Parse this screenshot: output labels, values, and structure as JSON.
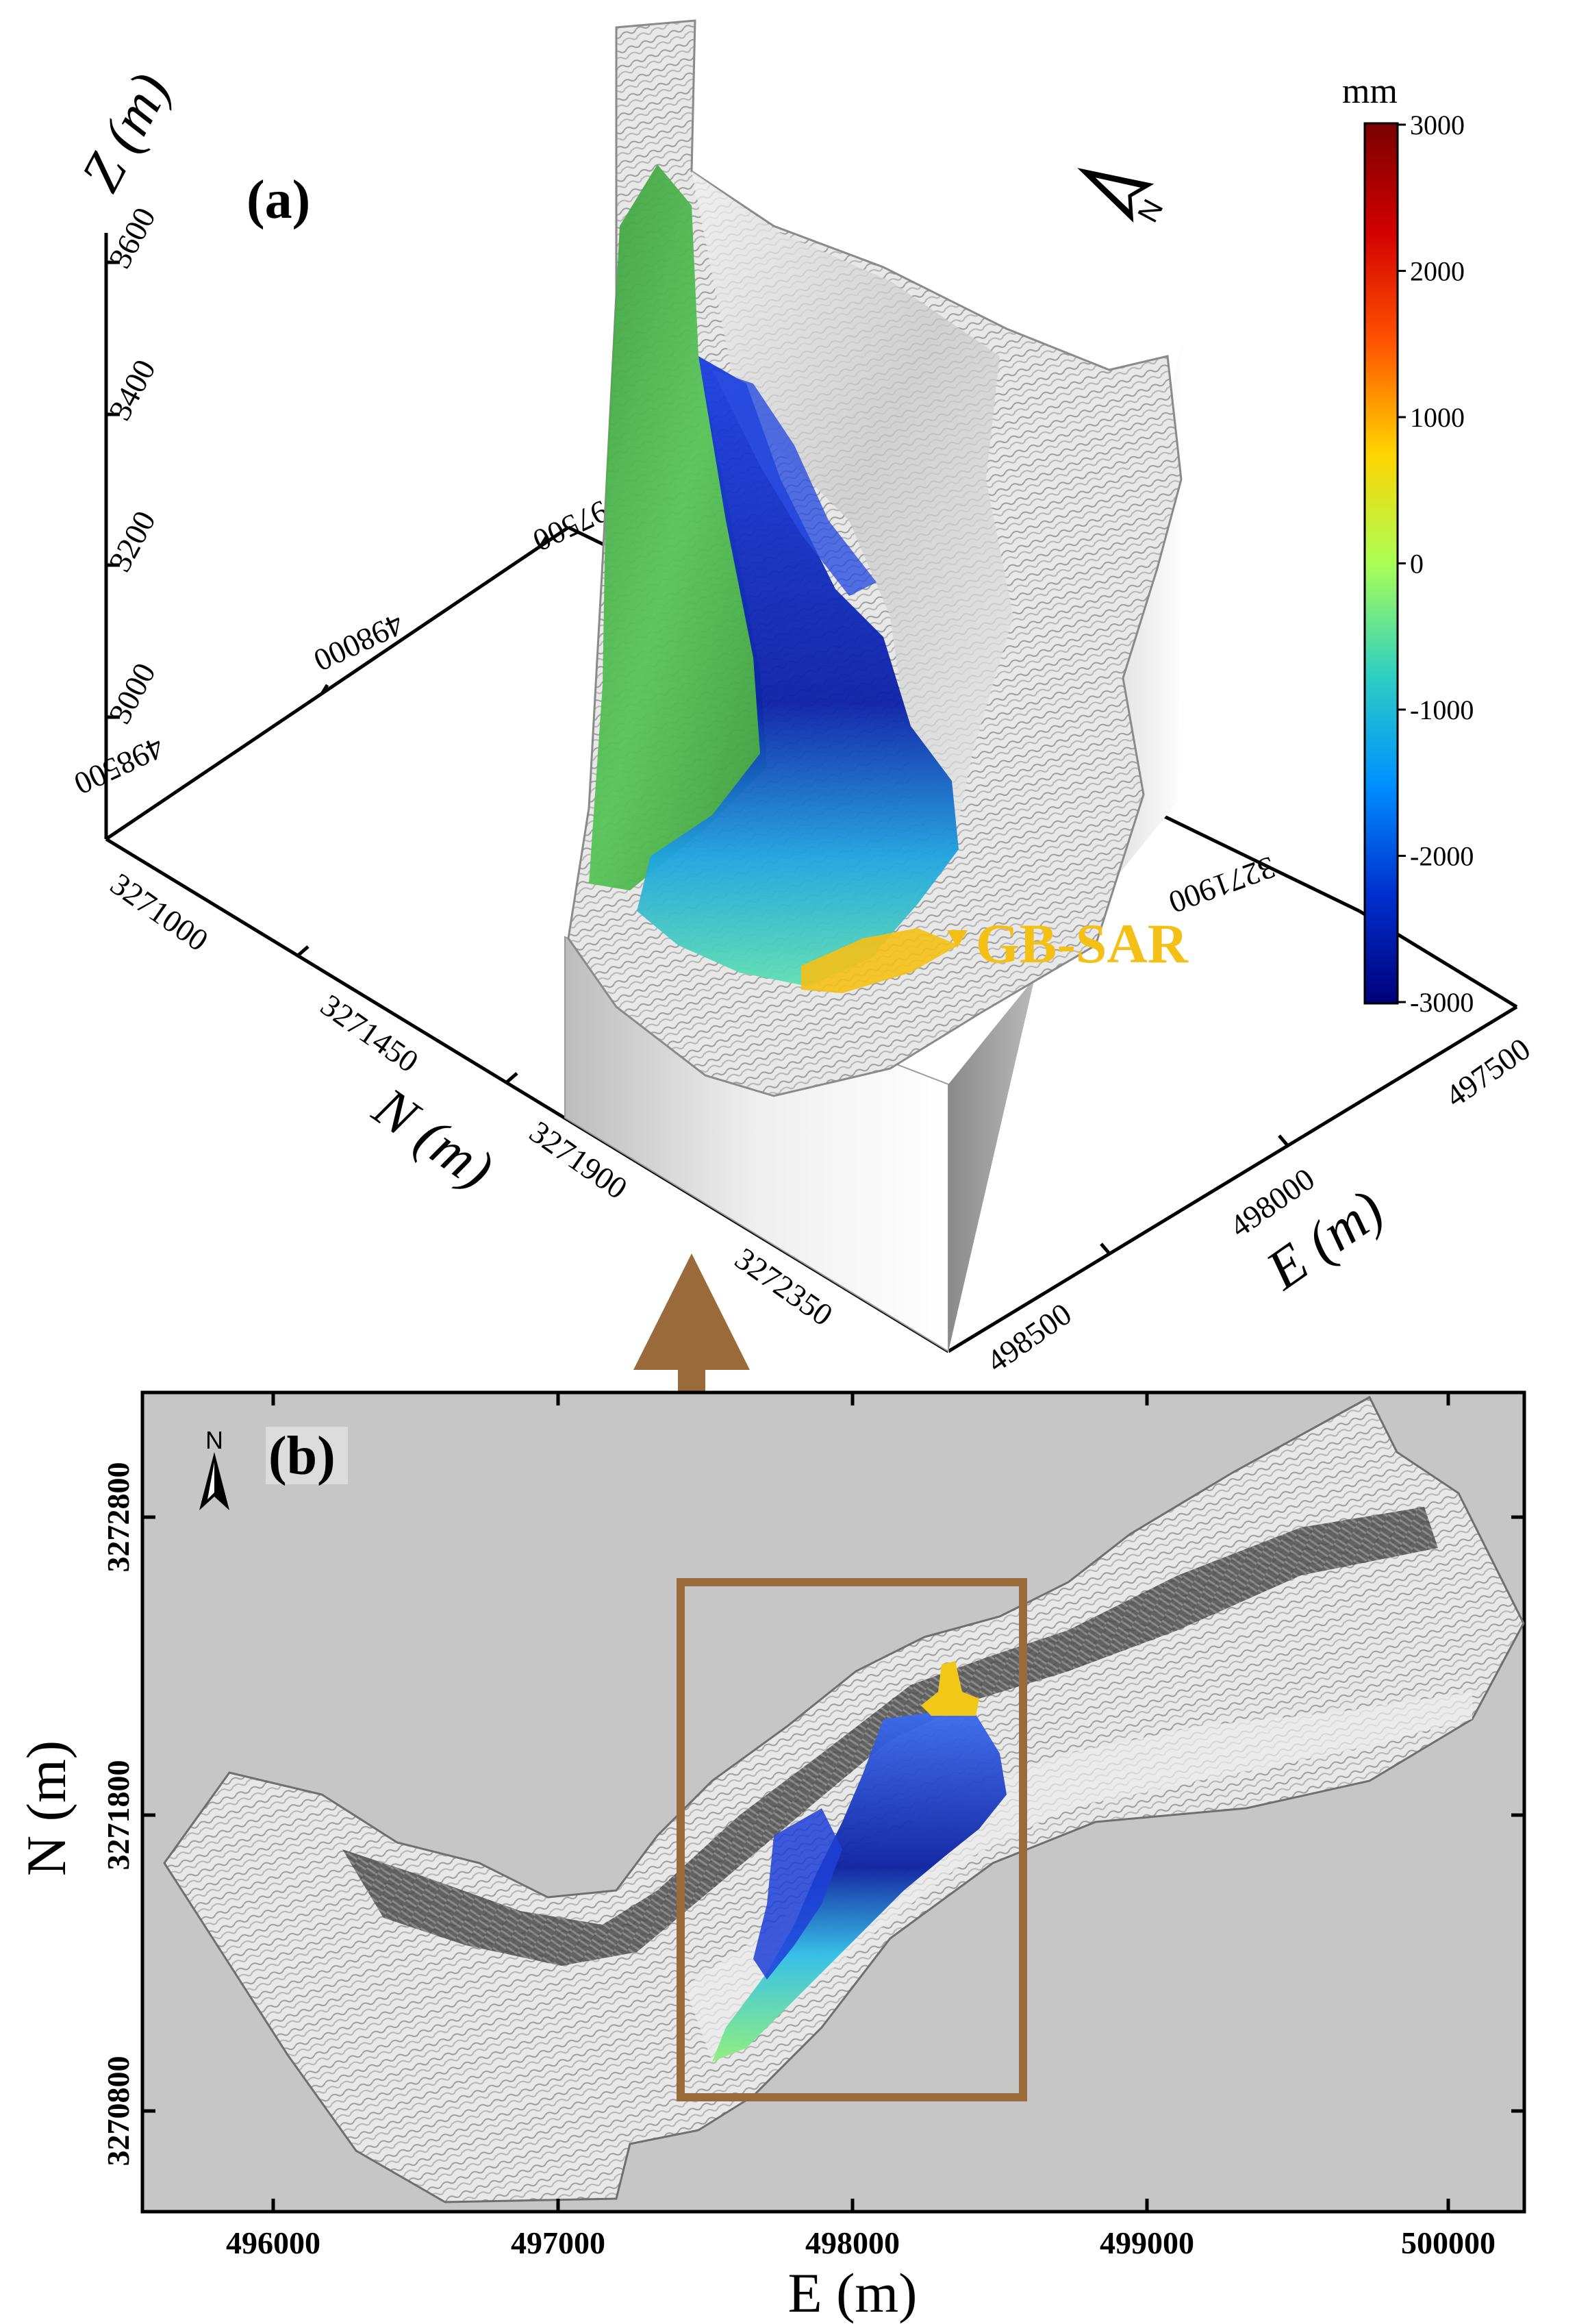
{
  "panel_a": {
    "label": "(a)",
    "z_axis": {
      "label": "Z (m)",
      "ticks": [
        "3000",
        "3200",
        "3400",
        "3600"
      ]
    },
    "n_axis": {
      "label": "N (m)",
      "ticks": [
        "3271000",
        "3271450",
        "3271900",
        "3272350"
      ]
    },
    "e_axis": {
      "label": "E (m)",
      "ticks": [
        "497500",
        "498000",
        "498500"
      ]
    },
    "back_e_ticks": [
      "498500",
      "498000",
      "497500"
    ],
    "back_n_tick": "3271900",
    "north_arrow": {
      "icon": "north-arrow-icon",
      "letter": "N"
    },
    "gbsar_label": "GB-SAR",
    "gbsar_color": "#f5c016",
    "colorbar": {
      "unit": "mm",
      "ticks": [
        "3000",
        "2000",
        "1000",
        "0",
        "-1000",
        "-2000",
        "-3000"
      ],
      "colors": [
        "#7a0000",
        "#d40000",
        "#ff5500",
        "#ffd400",
        "#aaff55",
        "#30d0c0",
        "#0090ff",
        "#0030d0",
        "#00007a"
      ]
    }
  },
  "panel_b": {
    "label": "(b)",
    "north_arrow": {
      "icon": "north-arrow-icon",
      "letter": "N"
    },
    "x_axis": {
      "label": "E (m)",
      "ticks": [
        "496000",
        "497000",
        "498000",
        "499000",
        "500000"
      ]
    },
    "y_axis": {
      "label": "N (m)",
      "ticks": [
        "3270800",
        "3271800",
        "3272800"
      ]
    },
    "highlight_color": "#9a6a3a",
    "background_color": "#c6c6c6"
  },
  "connector_arrow": {
    "icon": "up-arrow-icon",
    "color": "#9a6a3a"
  }
}
